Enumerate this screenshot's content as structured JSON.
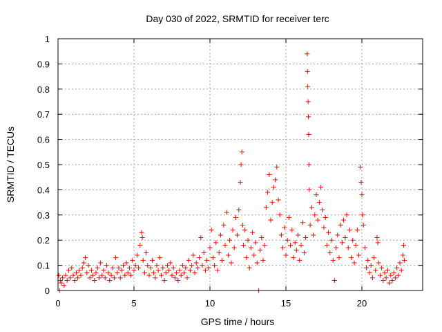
{
  "chart_data": {
    "type": "scatter",
    "title": "Day 030 of 2022, SRMTID for receiver terc",
    "xlabel": "GPS time / hours",
    "ylabel": "SRMTID / TECUs",
    "xlim": [
      0,
      24
    ],
    "ylim": [
      0,
      1
    ],
    "x_ticks": [
      0,
      5,
      10,
      15,
      20
    ],
    "x_tick_labels": [
      "0",
      "5",
      "10",
      "15",
      "20"
    ],
    "y_ticks": [
      0,
      0.1,
      0.2,
      0.3,
      0.4,
      0.5,
      0.6,
      0.7,
      0.8,
      0.9,
      1
    ],
    "y_tick_labels": [
      "0",
      "0.1",
      "0.2",
      "0.3",
      "0.4",
      "0.5",
      "0.6",
      "0.7",
      "0.8",
      "0.9",
      "1"
    ],
    "grid": true,
    "marker": "+",
    "color": "#ff0000",
    "series": [
      {
        "name": "SRMTID",
        "points": [
          [
            0.05,
            0.06
          ],
          [
            0.1,
            0.0
          ],
          [
            0.15,
            0.04
          ],
          [
            0.2,
            0.03
          ],
          [
            0.3,
            0.05
          ],
          [
            0.4,
            0.02
          ],
          [
            0.5,
            0.06
          ],
          [
            0.6,
            0.04
          ],
          [
            0.7,
            0.08
          ],
          [
            0.8,
            0.05
          ],
          [
            0.9,
            0.09
          ],
          [
            1.0,
            0.06
          ],
          [
            1.1,
            0.04
          ],
          [
            1.2,
            0.07
          ],
          [
            1.3,
            0.05
          ],
          [
            1.4,
            0.08
          ],
          [
            1.5,
            0.06
          ],
          [
            1.6,
            0.09
          ],
          [
            1.7,
            0.11
          ],
          [
            1.8,
            0.13
          ],
          [
            1.9,
            0.07
          ],
          [
            2.0,
            0.1
          ],
          [
            2.1,
            0.05
          ],
          [
            2.2,
            0.08
          ],
          [
            2.3,
            0.06
          ],
          [
            2.4,
            0.04
          ],
          [
            2.5,
            0.07
          ],
          [
            2.6,
            0.09
          ],
          [
            2.7,
            0.05
          ],
          [
            2.8,
            0.11
          ],
          [
            2.9,
            0.06
          ],
          [
            3.0,
            0.08
          ],
          [
            3.1,
            0.05
          ],
          [
            3.2,
            0.1
          ],
          [
            3.3,
            0.07
          ],
          [
            3.4,
            0.04
          ],
          [
            3.5,
            0.06
          ],
          [
            3.6,
            0.09
          ],
          [
            3.7,
            0.05
          ],
          [
            3.8,
            0.13
          ],
          [
            3.9,
            0.07
          ],
          [
            4.0,
            0.09
          ],
          [
            4.1,
            0.05
          ],
          [
            4.2,
            0.08
          ],
          [
            4.3,
            0.1
          ],
          [
            4.4,
            0.06
          ],
          [
            4.5,
            0.11
          ],
          [
            4.6,
            0.07
          ],
          [
            4.7,
            0.09
          ],
          [
            4.8,
            0.06
          ],
          [
            4.9,
            0.12
          ],
          [
            5.0,
            0.08
          ],
          [
            5.1,
            0.1
          ],
          [
            5.2,
            0.14
          ],
          [
            5.3,
            0.09
          ],
          [
            5.4,
            0.18
          ],
          [
            5.5,
            0.23
          ],
          [
            5.55,
            0.21
          ],
          [
            5.6,
            0.12
          ],
          [
            5.7,
            0.07
          ],
          [
            5.8,
            0.15
          ],
          [
            5.9,
            0.1
          ],
          [
            6.0,
            0.06
          ],
          [
            6.1,
            0.09
          ],
          [
            6.2,
            0.12
          ],
          [
            6.3,
            0.07
          ],
          [
            6.4,
            0.05
          ],
          [
            6.5,
            0.1
          ],
          [
            6.6,
            0.08
          ],
          [
            6.7,
            0.13
          ],
          [
            6.8,
            0.06
          ],
          [
            6.9,
            0.09
          ],
          [
            7.0,
            0.04
          ],
          [
            7.1,
            0.07
          ],
          [
            7.2,
            0.1
          ],
          [
            7.3,
            0.08
          ],
          [
            7.4,
            0.11
          ],
          [
            7.5,
            0.06
          ],
          [
            7.6,
            0.09
          ],
          [
            7.7,
            0.05
          ],
          [
            7.8,
            0.07
          ],
          [
            7.9,
            0.04
          ],
          [
            8.0,
            0.08
          ],
          [
            8.1,
            0.06
          ],
          [
            8.2,
            0.1
          ],
          [
            8.3,
            0.07
          ],
          [
            8.4,
            0.09
          ],
          [
            8.5,
            0.05
          ],
          [
            8.6,
            0.12
          ],
          [
            8.7,
            0.08
          ],
          [
            8.8,
            0.1
          ],
          [
            8.9,
            0.14
          ],
          [
            9.0,
            0.07
          ],
          [
            9.1,
            0.11
          ],
          [
            9.2,
            0.09
          ],
          [
            9.3,
            0.13
          ],
          [
            9.4,
            0.21
          ],
          [
            9.5,
            0.1
          ],
          [
            9.6,
            0.15
          ],
          [
            9.7,
            0.08
          ],
          [
            9.8,
            0.12
          ],
          [
            9.9,
            0.09
          ],
          [
            10.0,
            0.17
          ],
          [
            10.1,
            0.24
          ],
          [
            10.2,
            0.13
          ],
          [
            10.3,
            0.1
          ],
          [
            10.4,
            0.19
          ],
          [
            10.5,
            0.08
          ],
          [
            10.6,
            0.15
          ],
          [
            10.7,
            0.22
          ],
          [
            10.8,
            0.12
          ],
          [
            10.9,
            0.26
          ],
          [
            11.0,
            0.18
          ],
          [
            11.1,
            0.31
          ],
          [
            11.2,
            0.14
          ],
          [
            11.3,
            0.2
          ],
          [
            11.4,
            0.11
          ],
          [
            11.5,
            0.24
          ],
          [
            11.6,
            0.17
          ],
          [
            11.7,
            0.29
          ],
          [
            11.8,
            0.22
          ],
          [
            11.9,
            0.32
          ],
          [
            12.0,
            0.43
          ],
          [
            12.05,
            0.5
          ],
          [
            12.1,
            0.55
          ],
          [
            12.15,
            0.26
          ],
          [
            12.2,
            0.18
          ],
          [
            12.3,
            0.24
          ],
          [
            12.4,
            0.13
          ],
          [
            12.5,
            0.2
          ],
          [
            12.6,
            0.09
          ],
          [
            12.7,
            0.17
          ],
          [
            12.8,
            0.23
          ],
          [
            12.9,
            0.14
          ],
          [
            13.0,
            0.19
          ],
          [
            13.1,
            0.11
          ],
          [
            13.2,
            0.0
          ],
          [
            13.3,
            0.16
          ],
          [
            13.4,
            0.21
          ],
          [
            13.5,
            0.12
          ],
          [
            13.6,
            0.18
          ],
          [
            13.7,
            0.33
          ],
          [
            13.8,
            0.39
          ],
          [
            13.9,
            0.46
          ],
          [
            14.0,
            0.28
          ],
          [
            14.1,
            0.35
          ],
          [
            14.2,
            0.41
          ],
          [
            14.3,
            0.44
          ],
          [
            14.4,
            0.49
          ],
          [
            14.5,
            0.36
          ],
          [
            14.6,
            0.3
          ],
          [
            14.7,
            0.22
          ],
          [
            14.8,
            0.17
          ],
          [
            14.9,
            0.25
          ],
          [
            15.0,
            0.14
          ],
          [
            15.1,
            0.2
          ],
          [
            15.2,
            0.29
          ],
          [
            15.3,
            0.18
          ],
          [
            15.4,
            0.24
          ],
          [
            15.5,
            0.13
          ],
          [
            15.6,
            0.19
          ],
          [
            15.7,
            0.16
          ],
          [
            15.8,
            0.22
          ],
          [
            15.9,
            0.12
          ],
          [
            16.0,
            0.18
          ],
          [
            16.1,
            0.27
          ],
          [
            16.2,
            0.15
          ],
          [
            16.3,
            0.21
          ],
          [
            16.4,
            0.94
          ],
          [
            16.42,
            0.87
          ],
          [
            16.44,
            0.81
          ],
          [
            16.46,
            0.75
          ],
          [
            16.48,
            0.69
          ],
          [
            16.5,
            0.62
          ],
          [
            16.52,
            0.5
          ],
          [
            16.54,
            0.4
          ],
          [
            16.6,
            0.26
          ],
          [
            16.7,
            0.33
          ],
          [
            16.8,
            0.22
          ],
          [
            16.9,
            0.3
          ],
          [
            17.0,
            0.38
          ],
          [
            17.1,
            0.28
          ],
          [
            17.2,
            0.35
          ],
          [
            17.3,
            0.41
          ],
          [
            17.4,
            0.32
          ],
          [
            17.5,
            0.25
          ],
          [
            17.6,
            0.29
          ],
          [
            17.7,
            0.18
          ],
          [
            17.8,
            0.23
          ],
          [
            17.9,
            0.15
          ],
          [
            18.0,
            0.2
          ],
          [
            18.1,
            0.12
          ],
          [
            18.2,
            0.04
          ],
          [
            18.3,
            0.17
          ],
          [
            18.4,
            0.22
          ],
          [
            18.5,
            0.13
          ],
          [
            18.6,
            0.26
          ],
          [
            18.7,
            0.19
          ],
          [
            18.8,
            0.28
          ],
          [
            18.9,
            0.21
          ],
          [
            19.0,
            0.3
          ],
          [
            19.1,
            0.17
          ],
          [
            19.2,
            0.24
          ],
          [
            19.3,
            0.13
          ],
          [
            19.4,
            0.2
          ],
          [
            19.5,
            0.11
          ],
          [
            19.6,
            0.18
          ],
          [
            19.7,
            0.24
          ],
          [
            19.8,
            0.14
          ],
          [
            19.9,
            0.49
          ],
          [
            19.95,
            0.43
          ],
          [
            20.0,
            0.38
          ],
          [
            20.05,
            0.3
          ],
          [
            20.1,
            0.26
          ],
          [
            20.2,
            0.17
          ],
          [
            20.3,
            0.09
          ],
          [
            20.4,
            0.12
          ],
          [
            20.5,
            0.07
          ],
          [
            20.6,
            0.1
          ],
          [
            20.7,
            0.05
          ],
          [
            20.8,
            0.13
          ],
          [
            20.9,
            0.08
          ],
          [
            21.0,
            0.21
          ],
          [
            21.05,
            0.19
          ],
          [
            21.1,
            0.11
          ],
          [
            21.2,
            0.06
          ],
          [
            21.3,
            0.09
          ],
          [
            21.4,
            0.04
          ],
          [
            21.5,
            0.07
          ],
          [
            21.6,
            0.05
          ],
          [
            21.7,
            0.08
          ],
          [
            21.8,
            0.03
          ],
          [
            21.9,
            0.06
          ],
          [
            22.0,
            0.04
          ],
          [
            22.1,
            0.07
          ],
          [
            22.2,
            0.05
          ],
          [
            22.3,
            0.09
          ],
          [
            22.4,
            0.06
          ],
          [
            22.5,
            0.11
          ],
          [
            22.6,
            0.08
          ],
          [
            22.7,
            0.14
          ],
          [
            22.75,
            0.18
          ],
          [
            22.8,
            0.12
          ]
        ]
      }
    ]
  }
}
